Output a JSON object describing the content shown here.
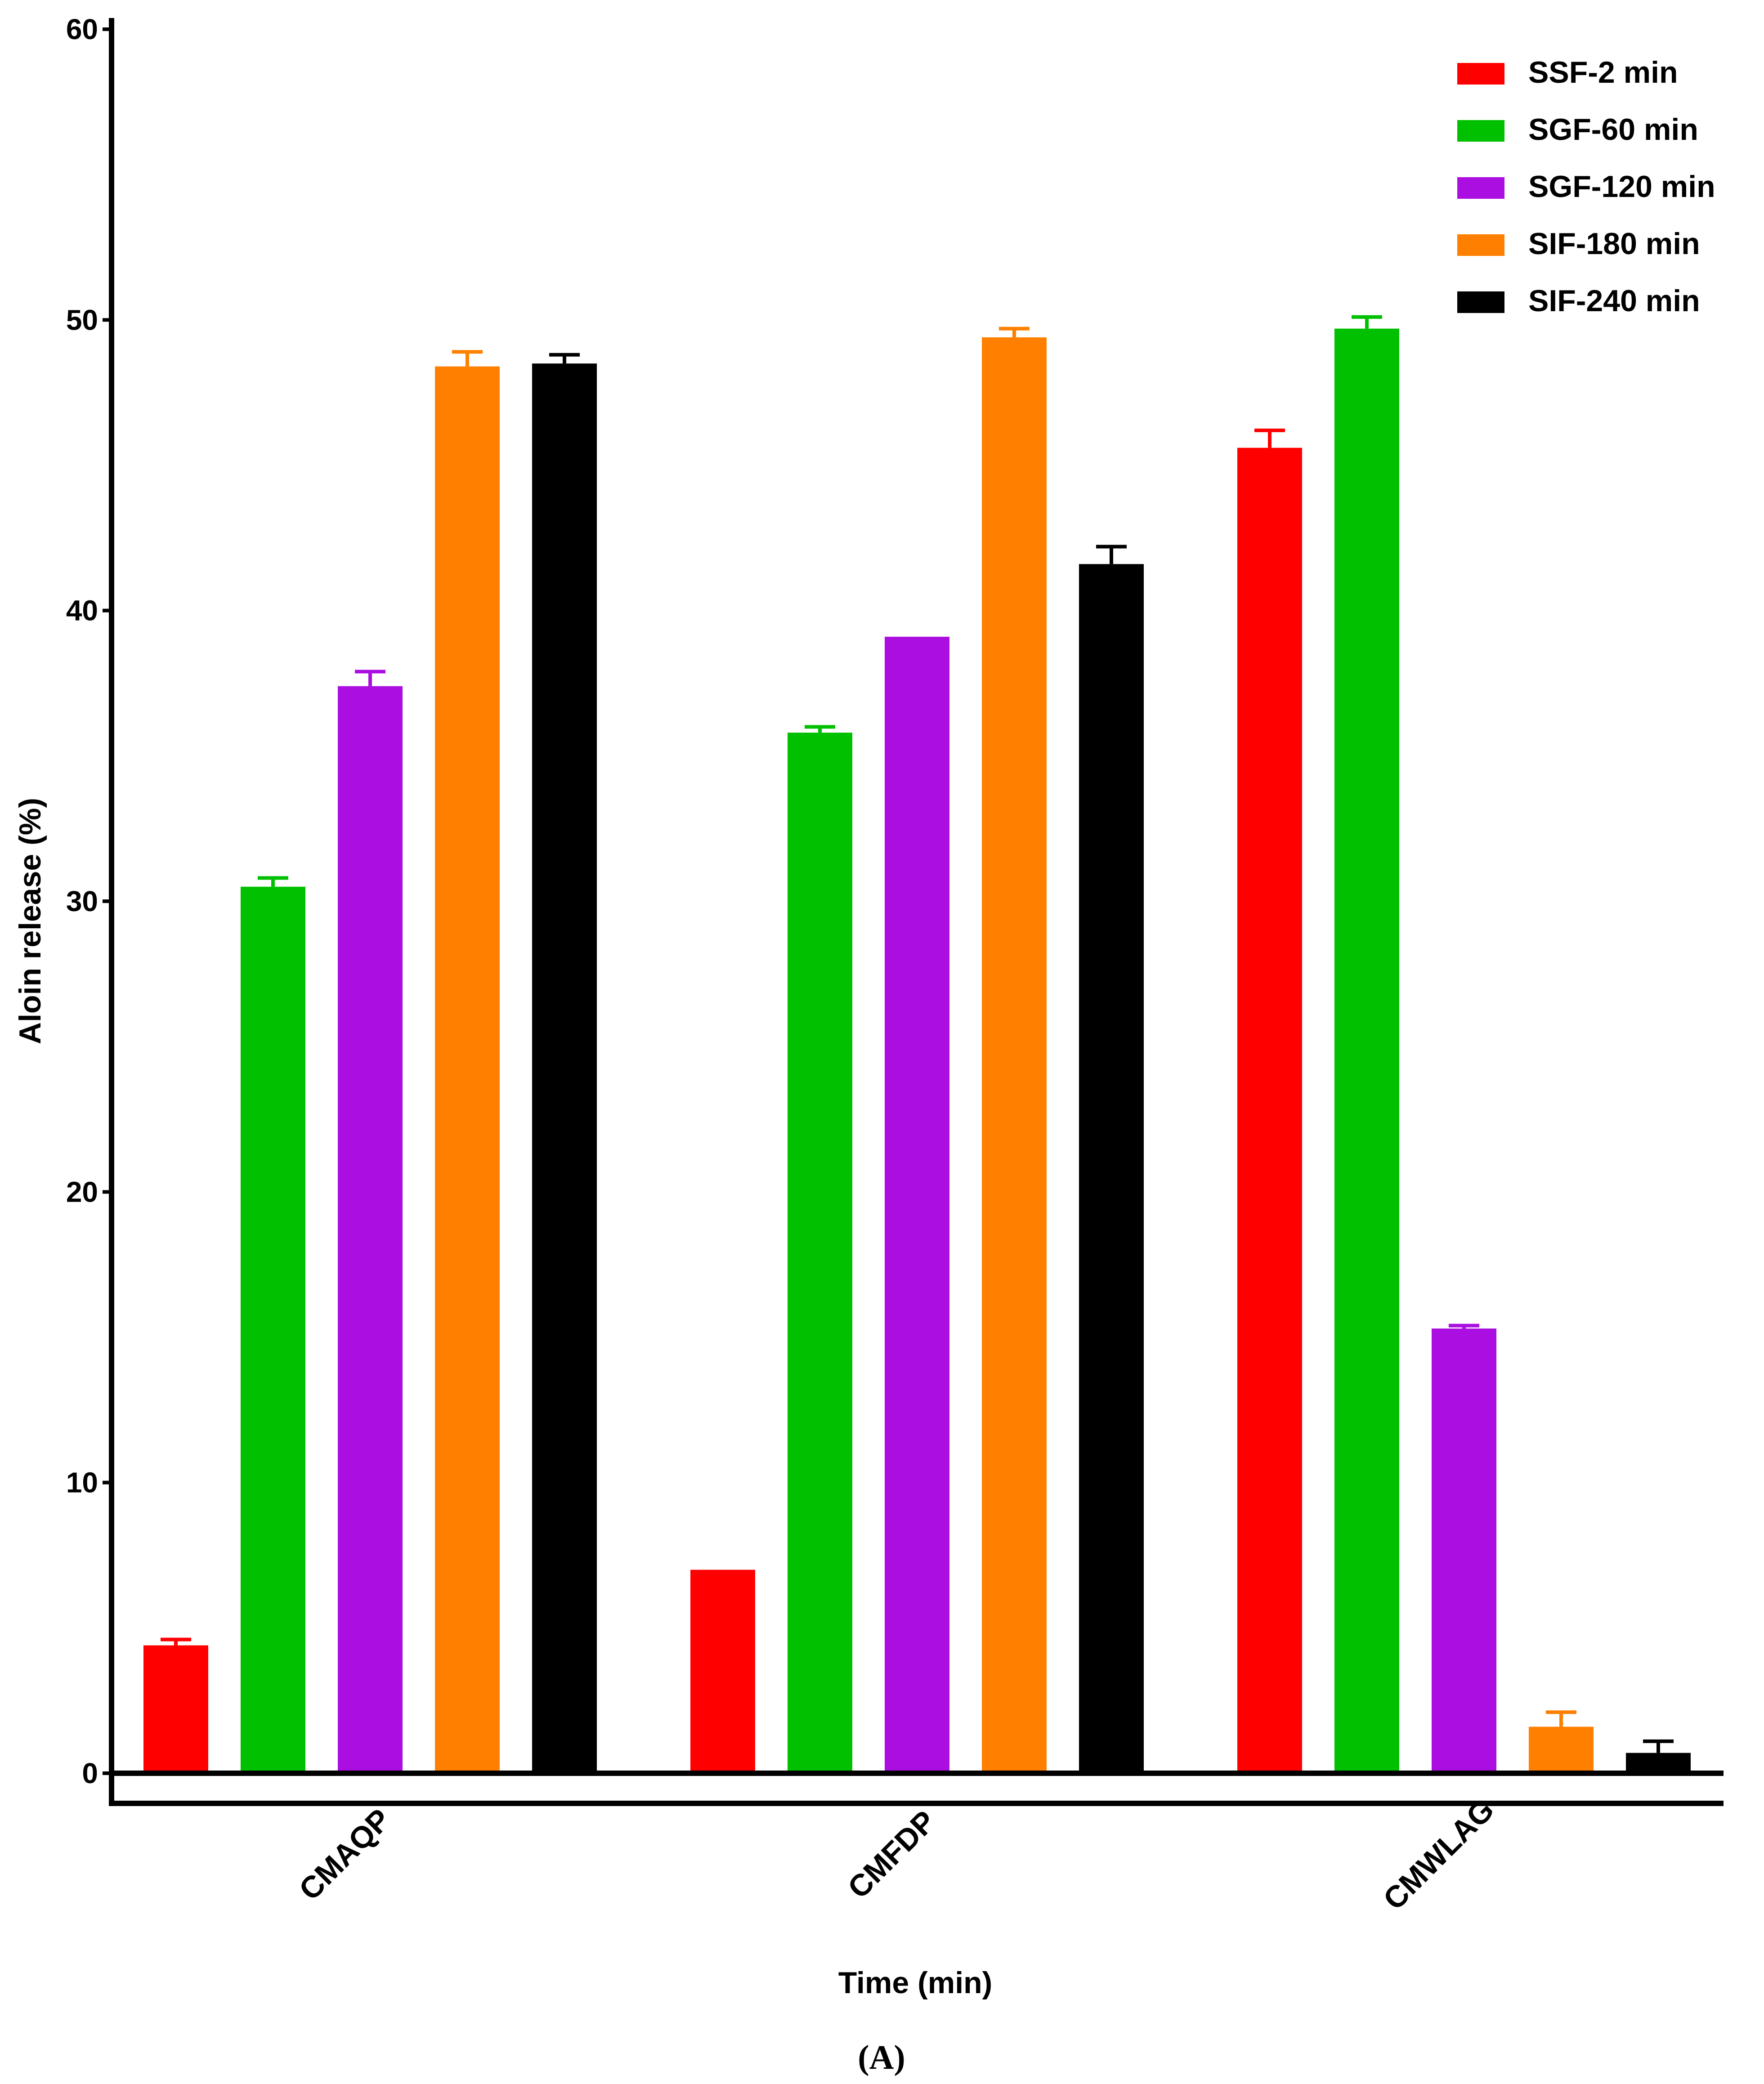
{
  "chart_data": {
    "type": "bar",
    "title": "",
    "xlabel": "Time (min)",
    "ylabel": "Aloin release (%)",
    "caption": "(A)",
    "ylim": [
      0,
      60
    ],
    "yticks": [
      "0",
      "10",
      "20",
      "30",
      "40",
      "50",
      "60"
    ],
    "ytick_values": [
      0,
      10,
      20,
      30,
      40,
      50,
      60
    ],
    "categories": [
      "CMAQP",
      "CMFDP",
      "CMWLAG"
    ],
    "legend_position": "top-right",
    "series": [
      {
        "name": "SSF-2 min",
        "color": "#ff0000",
        "values": [
          4.4,
          7.0,
          45.6
        ],
        "errors": [
          0.2,
          0.0,
          0.6
        ]
      },
      {
        "name": "SGF-60 min",
        "color": "#00c000",
        "values": [
          30.5,
          35.8,
          49.7
        ],
        "errors": [
          0.3,
          0.2,
          0.4
        ]
      },
      {
        "name": "SGF-120 min",
        "color": "#aa0ee0",
        "values": [
          37.4,
          39.1,
          15.3
        ],
        "errors": [
          0.5,
          0.0,
          0.1
        ]
      },
      {
        "name": "SIF-180 min",
        "color": "#ff8000",
        "values": [
          48.4,
          49.4,
          1.6
        ],
        "errors": [
          0.5,
          0.3,
          0.5
        ]
      },
      {
        "name": "SIF-240 min",
        "color": "#000000",
        "values": [
          48.5,
          41.6,
          0.7
        ],
        "errors": [
          0.3,
          0.6,
          0.4
        ]
      }
    ]
  }
}
